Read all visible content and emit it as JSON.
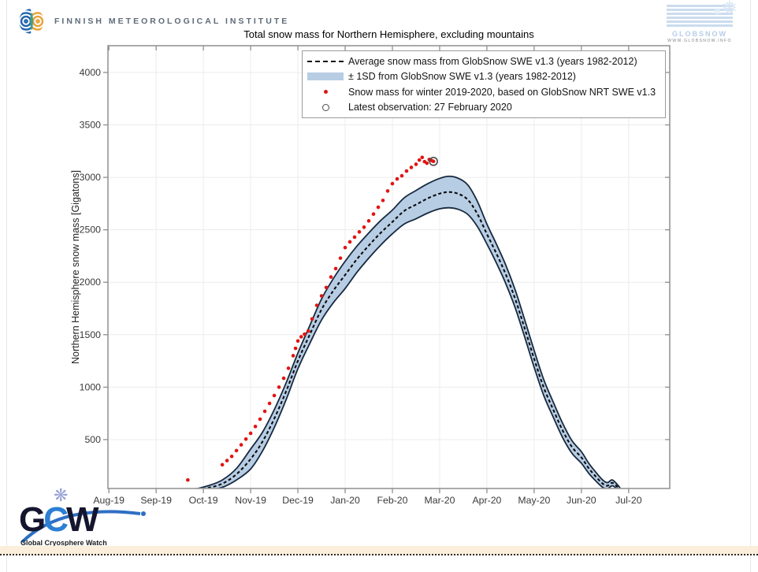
{
  "header": {
    "fmi": {
      "label": "FINNISH METEOROLOGICAL INSTITUTE",
      "text_color": "#5d6b78"
    },
    "globsnow": {
      "label": "GLOBSNOW",
      "url_label": "WWW.GLOBSNOW.INFO",
      "brand_color": "#b7cde8"
    }
  },
  "footer": {
    "gcw": {
      "letters": [
        {
          "char": "G",
          "color": "#15152e"
        },
        {
          "char": "C",
          "color": "#2b7fd4"
        },
        {
          "char": "W",
          "color": "#15152e"
        }
      ],
      "caption": "Global Cryosphere Watch",
      "swoosh_color": "#2e6fc3",
      "snowflake": "❋"
    },
    "divider_band_color": "#fbeedb"
  },
  "chart_data": {
    "type": "line",
    "title": "Total snow mass for Northern Hemisphere, excluding mountains",
    "ylabel": "Northern Hemisphere snow mass [Gigatons]",
    "x_tick_labels": [
      "Aug-19",
      "Sep-19",
      "Oct-19",
      "Nov-19",
      "Dec-19",
      "Jan-20",
      "Feb-20",
      "Mar-20",
      "Apr-20",
      "May-20",
      "Jun-20",
      "Jul-20"
    ],
    "y_ticks": [
      500,
      1000,
      1500,
      2000,
      2500,
      3000,
      3500,
      4000
    ],
    "ylim": [
      34,
      4255
    ],
    "xlim_months": [
      -0.02,
      11.87
    ],
    "x_axis_note": "x unit = months after 2019-08-01; ticks at integer months",
    "grid": true,
    "colors": {
      "band_fill": "#b7cde4",
      "band_edge": "#17293f",
      "mean_line": "#0b0b0b",
      "dot_color": "#e11414",
      "latest_ring": "#4a4a4a",
      "grid_color": "#ececec",
      "axis_color": "#8f8f8f",
      "tick_label_color": "#3a3a3a"
    },
    "legend": {
      "position": "top-right",
      "items": [
        {
          "glyph": "dashed-line",
          "label": "Average snow mass from GlobSnow SWE v1.3 (years 1982-2012)"
        },
        {
          "glyph": "band",
          "label": "± 1SD from GlobSnow SWE v1.3 (years 1982-2012)"
        },
        {
          "glyph": "red-dot",
          "label": "Snow mass for winter 2019-2020, based on GlobSnow NRT SWE v1.3"
        },
        {
          "glyph": "open-circle",
          "label": "Latest observation: 27 February 2020"
        }
      ]
    },
    "series": {
      "climatology": {
        "name": "Average snow mass from GlobSnow SWE v1.3 (years 1982-2012)",
        "points_m_mean_sd": [
          [
            1.4,
            5,
            3
          ],
          [
            1.8,
            18,
            10
          ],
          [
            2.1,
            40,
            20
          ],
          [
            2.4,
            80,
            35
          ],
          [
            2.7,
            170,
            55
          ],
          [
            3.0,
            315,
            95
          ],
          [
            3.25,
            480,
            90
          ],
          [
            3.5,
            700,
            85
          ],
          [
            3.75,
            960,
            80
          ],
          [
            4.0,
            1250,
            75
          ],
          [
            4.25,
            1500,
            85
          ],
          [
            4.5,
            1740,
            100
          ],
          [
            4.75,
            1920,
            115
          ],
          [
            5.0,
            2070,
            130
          ],
          [
            5.25,
            2220,
            125
          ],
          [
            5.5,
            2350,
            120
          ],
          [
            5.75,
            2470,
            117
          ],
          [
            6.0,
            2575,
            113
          ],
          [
            6.25,
            2680,
            125
          ],
          [
            6.5,
            2740,
            135
          ],
          [
            6.75,
            2800,
            140
          ],
          [
            7.0,
            2845,
            145
          ],
          [
            7.2,
            2860,
            150
          ],
          [
            7.4,
            2842,
            148
          ],
          [
            7.6,
            2785,
            140
          ],
          [
            7.8,
            2650,
            120
          ],
          [
            8.0,
            2460,
            95
          ],
          [
            8.2,
            2275,
            90
          ],
          [
            8.4,
            2075,
            88
          ],
          [
            8.6,
            1840,
            85
          ],
          [
            8.8,
            1560,
            82
          ],
          [
            9.0,
            1270,
            80
          ],
          [
            9.2,
            1000,
            76
          ],
          [
            9.4,
            790,
            72
          ],
          [
            9.6,
            590,
            68
          ],
          [
            9.8,
            430,
            60
          ],
          [
            10.0,
            330,
            55
          ],
          [
            10.15,
            230,
            48
          ],
          [
            10.3,
            150,
            42
          ],
          [
            10.45,
            80,
            35
          ],
          [
            10.55,
            60,
            30
          ],
          [
            10.65,
            88,
            28
          ],
          [
            10.75,
            55,
            22
          ],
          [
            10.85,
            12,
            8
          ]
        ]
      },
      "winter_2019_2020": {
        "name": "Snow mass for winter 2019-2020, based on GlobSnow NRT SWE v1.3",
        "points_m_value": [
          [
            1.67,
            115
          ],
          [
            2.4,
            260
          ],
          [
            2.5,
            300
          ],
          [
            2.6,
            340
          ],
          [
            2.7,
            395
          ],
          [
            2.8,
            450
          ],
          [
            2.9,
            505
          ],
          [
            3.0,
            560
          ],
          [
            3.1,
            625
          ],
          [
            3.2,
            695
          ],
          [
            3.3,
            770
          ],
          [
            3.4,
            845
          ],
          [
            3.5,
            920
          ],
          [
            3.6,
            1000
          ],
          [
            3.7,
            1085
          ],
          [
            3.8,
            1180
          ],
          [
            3.9,
            1300
          ],
          [
            3.95,
            1370
          ],
          [
            4.0,
            1440
          ],
          [
            4.07,
            1480
          ],
          [
            4.14,
            1505
          ],
          [
            4.22,
            1535
          ],
          [
            4.3,
            1650
          ],
          [
            4.4,
            1780
          ],
          [
            4.5,
            1870
          ],
          [
            4.6,
            1950
          ],
          [
            4.7,
            2050
          ],
          [
            4.8,
            2130
          ],
          [
            4.9,
            2230
          ],
          [
            5.0,
            2330
          ],
          [
            5.1,
            2385
          ],
          [
            5.2,
            2430
          ],
          [
            5.3,
            2480
          ],
          [
            5.4,
            2525
          ],
          [
            5.5,
            2585
          ],
          [
            5.6,
            2650
          ],
          [
            5.7,
            2715
          ],
          [
            5.8,
            2780
          ],
          [
            5.9,
            2870
          ],
          [
            6.0,
            2940
          ],
          [
            6.1,
            2985
          ],
          [
            6.2,
            3015
          ],
          [
            6.3,
            3060
          ],
          [
            6.4,
            3095
          ],
          [
            6.5,
            3125
          ],
          [
            6.57,
            3165
          ],
          [
            6.63,
            3190
          ],
          [
            6.68,
            3150
          ],
          [
            6.73,
            3135
          ],
          [
            6.78,
            3170
          ],
          [
            6.83,
            3160
          ],
          [
            6.87,
            3152
          ]
        ]
      },
      "latest_observation": {
        "name": "Latest observation",
        "date_label": "27 February 2020",
        "point_m_value": [
          6.87,
          3152
        ]
      }
    }
  }
}
